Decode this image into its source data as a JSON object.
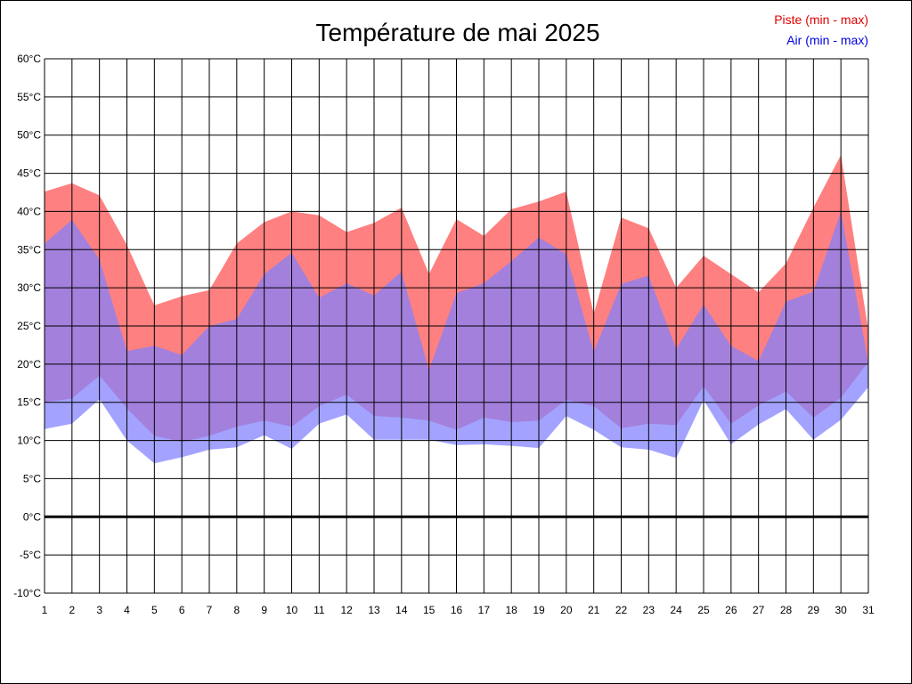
{
  "chart_data": {
    "type": "area",
    "title": "Température de mai 2025",
    "legend_position": "top-right",
    "legend": [
      {
        "label": "Piste (min - max)",
        "color": "#e00000"
      },
      {
        "label": "Air (min - max)",
        "color": "#0000e0"
      }
    ],
    "x": [
      1,
      2,
      3,
      4,
      5,
      6,
      7,
      8,
      9,
      10,
      11,
      12,
      13,
      14,
      15,
      16,
      17,
      18,
      19,
      20,
      21,
      22,
      23,
      24,
      25,
      26,
      27,
      28,
      29,
      30,
      31
    ],
    "x_tick_labels": [
      "1",
      "2",
      "3",
      "4",
      "5",
      "6",
      "7",
      "8",
      "9",
      "10",
      "11",
      "12",
      "13",
      "14",
      "15",
      "16",
      "17",
      "18",
      "19",
      "20",
      "21",
      "22",
      "23",
      "24",
      "25",
      "26",
      "27",
      "28",
      "29",
      "30",
      "31"
    ],
    "y_tick_labels": [
      "60°C",
      "55°C",
      "50°C",
      "45°C",
      "40°C",
      "35°C",
      "30°C",
      "25°C",
      "20°C",
      "15°C",
      "10°C",
      "5°C",
      "0°C",
      "-5°C",
      "-10°C"
    ],
    "y_ticks": [
      60,
      55,
      50,
      45,
      40,
      35,
      30,
      25,
      20,
      15,
      10,
      5,
      0,
      -5,
      -10
    ],
    "ylim": [
      -10,
      60
    ],
    "xlim": [
      1,
      31
    ],
    "grid": true,
    "zero_line": true,
    "series": [
      {
        "name": "Piste (min - max)",
        "color": "#ff8080",
        "min": [
          15,
          15.5,
          18.5,
          14.2,
          10.6,
          9.8,
          10.6,
          11.8,
          12.6,
          11.8,
          14.5,
          16,
          13.2,
          13,
          12.6,
          11.4,
          13,
          12.4,
          12.6,
          15.3,
          14.5,
          11.6,
          12.2,
          12,
          17.1,
          12.2,
          14.6,
          16.4,
          13,
          15.6,
          20.3
        ],
        "max": [
          42.6,
          43.7,
          42.1,
          35.6,
          27.7,
          28.9,
          29.7,
          35.8,
          38.6,
          40,
          39.5,
          37.3,
          38.5,
          40.5,
          31.8,
          39,
          36.8,
          40.3,
          41.3,
          42.6,
          26.6,
          39.2,
          37.8,
          30,
          34.2,
          31.8,
          29.4,
          33.2,
          40.5,
          47.4,
          24.4
        ]
      },
      {
        "name": "Air (min - max)",
        "color": "#8080ff",
        "min": [
          11.5,
          12.2,
          15.4,
          10,
          7,
          7.8,
          8.8,
          9.1,
          10.7,
          8.9,
          12.2,
          13.4,
          10.1,
          10.1,
          10.1,
          9.4,
          9.5,
          9.3,
          9,
          13.2,
          11.4,
          9.1,
          8.8,
          7.7,
          15.3,
          9.5,
          12.1,
          14.1,
          10.1,
          12.7,
          17
        ],
        "max": [
          35.8,
          38.9,
          33.7,
          21.7,
          22.4,
          21.2,
          25,
          25.9,
          31.8,
          34.6,
          28.7,
          30.6,
          29,
          32.1,
          19.2,
          29.3,
          30.6,
          33.5,
          36.6,
          34.4,
          21.6,
          30.5,
          31.6,
          22,
          27.8,
          22.4,
          20.4,
          28.2,
          29.5,
          40,
          20.1
        ]
      }
    ]
  }
}
